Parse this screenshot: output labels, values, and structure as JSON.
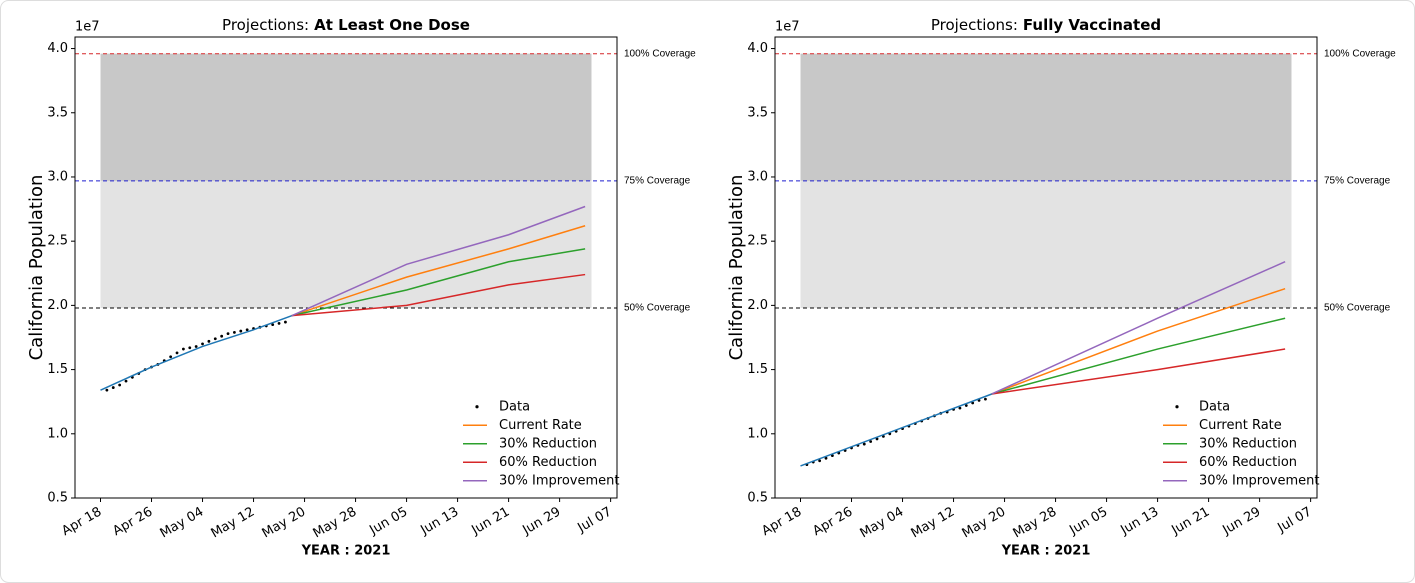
{
  "chart_data": [
    {
      "type": "line",
      "title": [
        "Projections:",
        "At Least One Dose"
      ],
      "offset_label": "1e7",
      "xlabel": "YEAR : 2021",
      "ylabel": "California Population",
      "xlim": [
        "2021-04-14",
        "2021-07-08"
      ],
      "ylim": [
        0.5,
        4.09
      ],
      "xticks": [
        {
          "value": "2021-04-18",
          "label": "Apr 18"
        },
        {
          "value": "2021-04-26",
          "label": "Apr 26"
        },
        {
          "value": "2021-05-04",
          "label": "May 04"
        },
        {
          "value": "2021-05-12",
          "label": "May 12"
        },
        {
          "value": "2021-05-20",
          "label": "May 20"
        },
        {
          "value": "2021-05-28",
          "label": "May 28"
        },
        {
          "value": "2021-06-05",
          "label": "Jun 05"
        },
        {
          "value": "2021-06-13",
          "label": "Jun 13"
        },
        {
          "value": "2021-06-21",
          "label": "Jun 21"
        },
        {
          "value": "2021-06-29",
          "label": "Jun 29"
        },
        {
          "value": "2021-07-07",
          "label": "Jul 07"
        }
      ],
      "yticks": [
        0.5,
        {
          "value": 1,
          "label": "1.0"
        },
        1.5,
        {
          "value": 2,
          "label": "2.0"
        },
        2.5,
        {
          "value": 3,
          "label": "3.0"
        },
        3.5,
        {
          "value": 4,
          "label": "4.0"
        }
      ],
      "bands": [
        {
          "from": 1.98,
          "to": 3.96,
          "x": [
            "2021-04-18",
            "2021-07-04"
          ],
          "color": "#e3e3e3"
        },
        {
          "from": 2.97,
          "to": 3.96,
          "x": [
            "2021-04-18",
            "2021-07-04"
          ],
          "color": "#c8c8c8"
        }
      ],
      "hlines": [
        {
          "value": 3.96,
          "label": "100% Coverage",
          "color": "#d62728"
        },
        {
          "value": 2.97,
          "label": "75% Coverage",
          "color": "#1f1fcf"
        },
        {
          "value": 1.98,
          "label": "50%  Coverage",
          "color": "#000000"
        }
      ],
      "legend": "lower right",
      "series": [
        {
          "name": "Data",
          "marker": "dot",
          "color": "#000000",
          "x": [
            "2021-04-19",
            "2021-04-20",
            "2021-04-21",
            "2021-04-22",
            "2021-04-23",
            "2021-04-24",
            "2021-04-25",
            "2021-04-26",
            "2021-04-27",
            "2021-04-28",
            "2021-04-29",
            "2021-04-30",
            "2021-05-01",
            "2021-05-02",
            "2021-05-03",
            "2021-05-04",
            "2021-05-05",
            "2021-05-06",
            "2021-05-07",
            "2021-05-08",
            "2021-05-09",
            "2021-05-10",
            "2021-05-11",
            "2021-05-12",
            "2021-05-13",
            "2021-05-14",
            "2021-05-15",
            "2021-05-16",
            "2021-05-17"
          ],
          "values": [
            1.34,
            1.36,
            1.38,
            1.41,
            1.44,
            1.47,
            1.5,
            1.52,
            1.54,
            1.57,
            1.6,
            1.63,
            1.66,
            1.67,
            1.68,
            1.7,
            1.72,
            1.74,
            1.76,
            1.78,
            1.79,
            1.8,
            1.81,
            1.82,
            1.83,
            1.84,
            1.85,
            1.86,
            1.87
          ]
        },
        {
          "color": "#1f77b4",
          "x": [
            "2021-04-18",
            "2021-04-26",
            "2021-05-04",
            "2021-05-12",
            "2021-05-18"
          ],
          "values": [
            1.34,
            1.52,
            1.68,
            1.81,
            1.92
          ]
        },
        {
          "name": "Current Rate",
          "color": "#ff7f0e",
          "x": [
            "2021-05-18",
            "2021-06-05",
            "2021-06-21",
            "2021-07-03"
          ],
          "values": [
            1.92,
            2.22,
            2.44,
            2.62
          ]
        },
        {
          "name": "30% Reduction",
          "color": "#2ca02c",
          "x": [
            "2021-05-18",
            "2021-06-05",
            "2021-06-21",
            "2021-07-03"
          ],
          "values": [
            1.92,
            2.12,
            2.34,
            2.44
          ]
        },
        {
          "name": "60% Reduction",
          "color": "#d62728",
          "x": [
            "2021-05-18",
            "2021-06-05",
            "2021-06-21",
            "2021-07-03"
          ],
          "values": [
            1.92,
            2.0,
            2.16,
            2.24
          ]
        },
        {
          "name": "30% Improvement",
          "color": "#9467bd",
          "x": [
            "2021-05-18",
            "2021-06-05",
            "2021-06-21",
            "2021-07-03"
          ],
          "values": [
            1.92,
            2.32,
            2.55,
            2.77
          ]
        }
      ]
    },
    {
      "type": "line",
      "title": [
        "Projections:",
        "Fully Vaccinated"
      ],
      "offset_label": "1e7",
      "xlabel": "YEAR : 2021",
      "ylabel": "California Population",
      "xlim": [
        "2021-04-14",
        "2021-07-08"
      ],
      "ylim": [
        0.5,
        4.09
      ],
      "xticks": [
        {
          "value": "2021-04-18",
          "label": "Apr 18"
        },
        {
          "value": "2021-04-26",
          "label": "Apr 26"
        },
        {
          "value": "2021-05-04",
          "label": "May 04"
        },
        {
          "value": "2021-05-12",
          "label": "May 12"
        },
        {
          "value": "2021-05-20",
          "label": "May 20"
        },
        {
          "value": "2021-05-28",
          "label": "May 28"
        },
        {
          "value": "2021-06-05",
          "label": "Jun 05"
        },
        {
          "value": "2021-06-13",
          "label": "Jun 13"
        },
        {
          "value": "2021-06-21",
          "label": "Jun 21"
        },
        {
          "value": "2021-06-29",
          "label": "Jun 29"
        },
        {
          "value": "2021-07-07",
          "label": "Jul 07"
        }
      ],
      "yticks": [
        0.5,
        {
          "value": 1,
          "label": "1.0"
        },
        1.5,
        {
          "value": 2,
          "label": "2.0"
        },
        2.5,
        {
          "value": 3,
          "label": "3.0"
        },
        3.5,
        {
          "value": 4,
          "label": "4.0"
        }
      ],
      "bands": [
        {
          "from": 1.98,
          "to": 3.96,
          "x": [
            "2021-04-18",
            "2021-07-04"
          ],
          "color": "#e3e3e3"
        },
        {
          "from": 2.97,
          "to": 3.96,
          "x": [
            "2021-04-18",
            "2021-07-04"
          ],
          "color": "#c8c8c8"
        }
      ],
      "hlines": [
        {
          "value": 3.96,
          "label": "100% Coverage",
          "color": "#d62728"
        },
        {
          "value": 2.97,
          "label": "75% Coverage",
          "color": "#1f1fcf"
        },
        {
          "value": 1.98,
          "label": "50%  Coverage",
          "color": "#000000"
        }
      ],
      "legend": "lower right",
      "series": [
        {
          "name": "Data",
          "marker": "dot",
          "color": "#000000",
          "x": [
            "2021-04-19",
            "2021-04-20",
            "2021-04-21",
            "2021-04-22",
            "2021-04-23",
            "2021-04-24",
            "2021-04-25",
            "2021-04-26",
            "2021-04-27",
            "2021-04-28",
            "2021-04-29",
            "2021-04-30",
            "2021-05-01",
            "2021-05-02",
            "2021-05-03",
            "2021-05-04",
            "2021-05-05",
            "2021-05-06",
            "2021-05-07",
            "2021-05-08",
            "2021-05-09",
            "2021-05-10",
            "2021-05-11",
            "2021-05-12",
            "2021-05-13",
            "2021-05-14",
            "2021-05-15",
            "2021-05-16",
            "2021-05-17"
          ],
          "values": [
            0.76,
            0.78,
            0.79,
            0.81,
            0.83,
            0.85,
            0.87,
            0.89,
            0.91,
            0.92,
            0.94,
            0.96,
            0.98,
            1.0,
            1.02,
            1.04,
            1.06,
            1.08,
            1.1,
            1.12,
            1.14,
            1.16,
            1.17,
            1.19,
            1.2,
            1.22,
            1.24,
            1.26,
            1.27
          ]
        },
        {
          "color": "#1f77b4",
          "x": [
            "2021-04-18",
            "2021-05-18"
          ],
          "values": [
            0.75,
            1.31
          ]
        },
        {
          "name": "Current Rate",
          "color": "#ff7f0e",
          "x": [
            "2021-05-18",
            "2021-06-13",
            "2021-07-03"
          ],
          "values": [
            1.31,
            1.8,
            2.13
          ]
        },
        {
          "name": "30% Reduction",
          "color": "#2ca02c",
          "x": [
            "2021-05-18",
            "2021-06-13",
            "2021-07-03"
          ],
          "values": [
            1.31,
            1.66,
            1.9
          ]
        },
        {
          "name": "60% Reduction",
          "color": "#d62728",
          "x": [
            "2021-05-18",
            "2021-06-13",
            "2021-07-03"
          ],
          "values": [
            1.31,
            1.5,
            1.66
          ]
        },
        {
          "name": "30% Improvement",
          "color": "#9467bd",
          "x": [
            "2021-05-18",
            "2021-06-13",
            "2021-07-03"
          ],
          "values": [
            1.31,
            1.9,
            2.34
          ]
        }
      ]
    }
  ]
}
